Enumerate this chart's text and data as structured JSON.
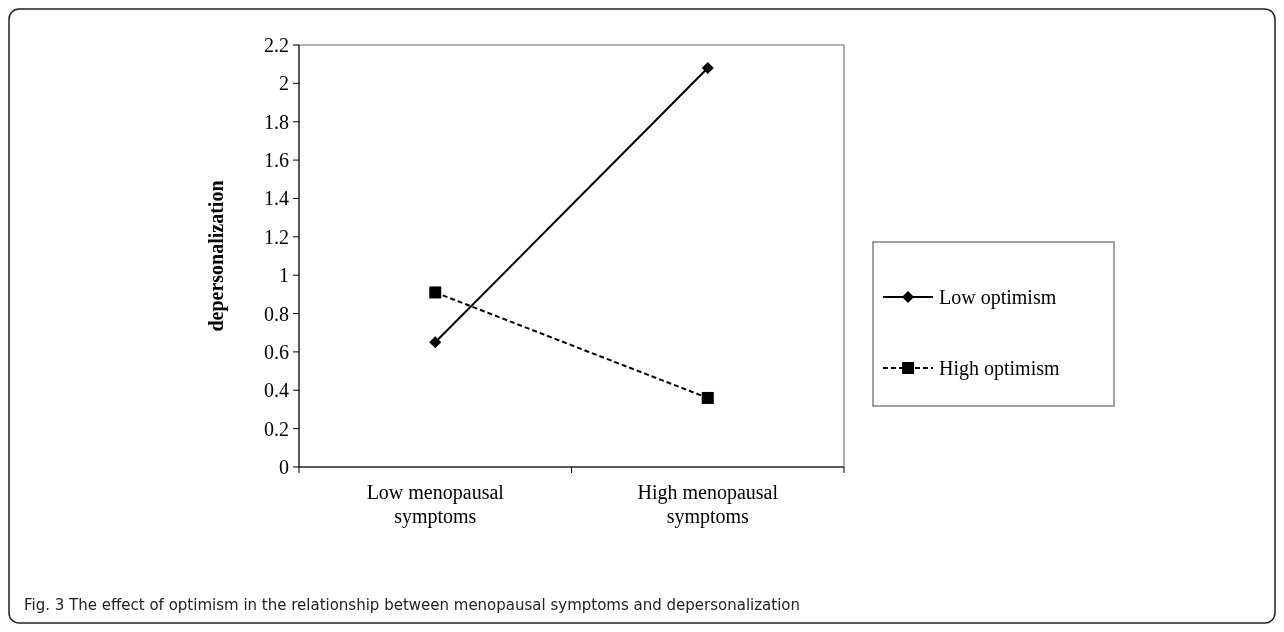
{
  "chart_data": {
    "type": "line",
    "ylabel": "depersonalization",
    "categories": [
      "Low menopausal symptoms",
      "High menopausal symptoms"
    ],
    "series": [
      {
        "name": "Low optimism",
        "color": "#000000",
        "values": [
          0.65,
          2.08
        ],
        "marker": "diamond",
        "line_style": "solid"
      },
      {
        "name": "High optimism",
        "color": "#000000",
        "values": [
          0.91,
          0.36
        ],
        "marker": "square",
        "line_style": "dashed"
      }
    ],
    "ylim": [
      0,
      2.2
    ],
    "yticks": [
      0,
      0.2,
      0.4,
      0.6,
      0.8,
      1,
      1.2,
      1.4,
      1.6,
      1.8,
      2,
      2.2
    ],
    "grid": false,
    "legend": "right",
    "annotations": [
      "Fig. 3 The effect of optimism in the relationship between menopausal symptoms and depersonalization"
    ]
  }
}
